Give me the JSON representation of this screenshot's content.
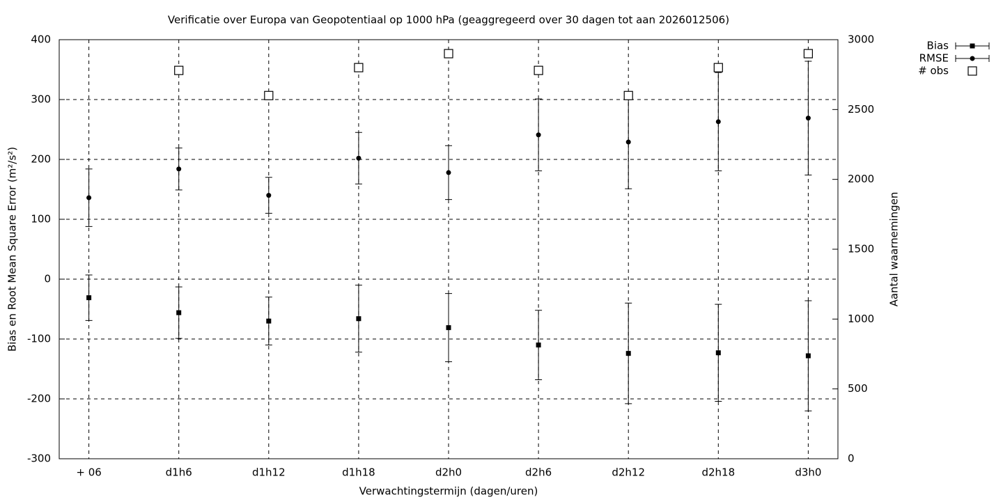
{
  "chart_data": {
    "type": "errorbar",
    "title": "Verificatie over Europa van Geopotentiaal op 1000 hPa (geaggregeerd over 30 dagen tot aan 2026012506)",
    "x_label": "Verwachtingstermijn (dagen/uren)",
    "y_label": "Bias en Root Mean Square Error (m²/s²)",
    "y2_label": "Aantal waarnemingen",
    "categories": [
      "+ 06",
      "d1h6",
      "d1h12",
      "d1h18",
      "d2h0",
      "d2h6",
      "d2h12",
      "d2h18",
      "d3h0"
    ],
    "series": [
      {
        "name": "Bias",
        "color": "#000000",
        "marker": "square",
        "values": [
          -31,
          -56,
          -70,
          -66,
          -81,
          -110,
          -124,
          -123,
          -128
        ],
        "errors": [
          38,
          43,
          40,
          56,
          57,
          58,
          84,
          81,
          92
        ]
      },
      {
        "name": "RMSE",
        "color": "#000000",
        "marker": "circle",
        "values": [
          136,
          184,
          140,
          202,
          178,
          241,
          229,
          263,
          269
        ],
        "errors": [
          48,
          35,
          30,
          43,
          45,
          60,
          78,
          82,
          95
        ]
      },
      {
        "name": "# obs",
        "color": "#000000",
        "marker": "open-square",
        "axis": "y2",
        "values": [
          null,
          2780,
          2600,
          2800,
          2900,
          2780,
          2600,
          2800,
          2900
        ]
      }
    ],
    "ylim": [
      -300,
      400
    ],
    "yticks": [
      -300,
      -200,
      -100,
      0,
      100,
      200,
      300,
      400
    ],
    "y2lim": [
      0,
      3000
    ],
    "y2ticks": [
      0,
      500,
      1000,
      1500,
      2000,
      2500,
      3000
    ],
    "grid": true,
    "legend": "top-right"
  }
}
